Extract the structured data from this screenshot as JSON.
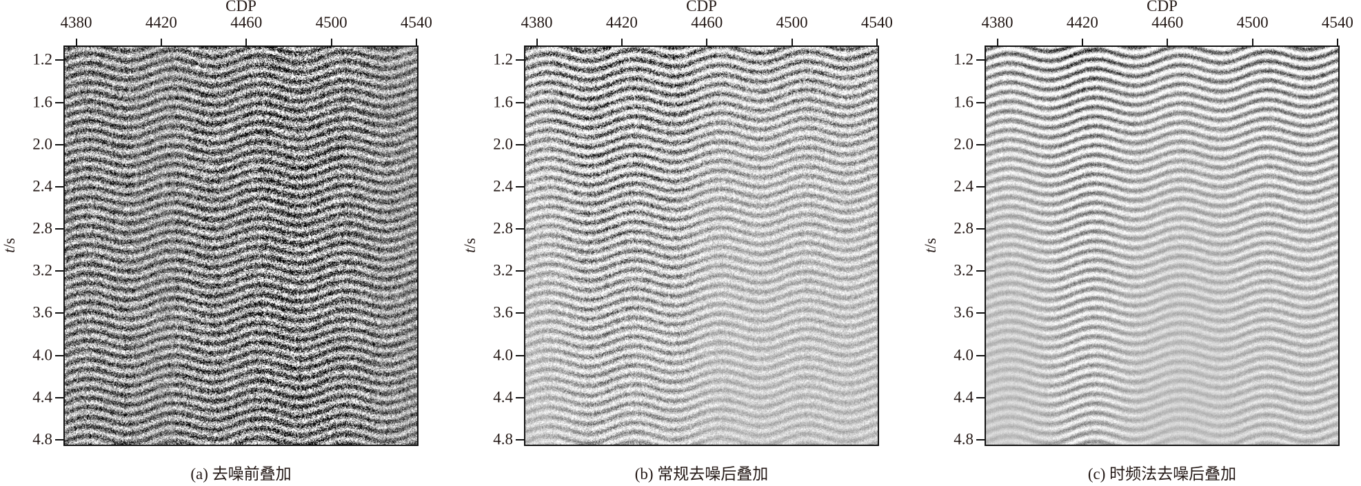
{
  "chart_data": [
    {
      "type": "heatmap",
      "caption": "(a) 去噪前叠加",
      "xlabel": "CDP",
      "ylabel_var": "t",
      "ylabel_unit": "/s",
      "xticks": [
        "4380",
        "4420",
        "4460",
        "4500",
        "4540"
      ],
      "yticks": [
        "1.2",
        "1.6",
        "2.0",
        "2.4",
        "2.8",
        "3.2",
        "3.6",
        "4.0",
        "4.4",
        "4.8"
      ],
      "xlim": [
        4374,
        4541
      ],
      "ylim": [
        1.06,
        4.86
      ],
      "colormap": "grayscale",
      "noise_level": "high"
    },
    {
      "type": "heatmap",
      "caption": "(b) 常规去噪后叠加",
      "xlabel": "CDP",
      "ylabel_var": "t",
      "ylabel_unit": "/s",
      "xticks": [
        "4380",
        "4420",
        "4460",
        "4500",
        "4540"
      ],
      "yticks": [
        "1.2",
        "1.6",
        "2.0",
        "2.4",
        "2.8",
        "3.2",
        "3.6",
        "4.0",
        "4.4",
        "4.8"
      ],
      "xlim": [
        4374,
        4541
      ],
      "ylim": [
        1.06,
        4.86
      ],
      "colormap": "grayscale",
      "noise_level": "medium"
    },
    {
      "type": "heatmap",
      "caption": "(c) 时频法去噪后叠加",
      "xlabel": "CDP",
      "ylabel_var": "t",
      "ylabel_unit": "/s",
      "xticks": [
        "4380",
        "4420",
        "4460",
        "4500",
        "4540"
      ],
      "yticks": [
        "1.2",
        "1.6",
        "2.0",
        "2.4",
        "2.8",
        "3.2",
        "3.6",
        "4.0",
        "4.4",
        "4.8"
      ],
      "xlim": [
        4374,
        4541
      ],
      "ylim": [
        1.06,
        4.86
      ],
      "colormap": "grayscale",
      "noise_level": "low"
    }
  ]
}
